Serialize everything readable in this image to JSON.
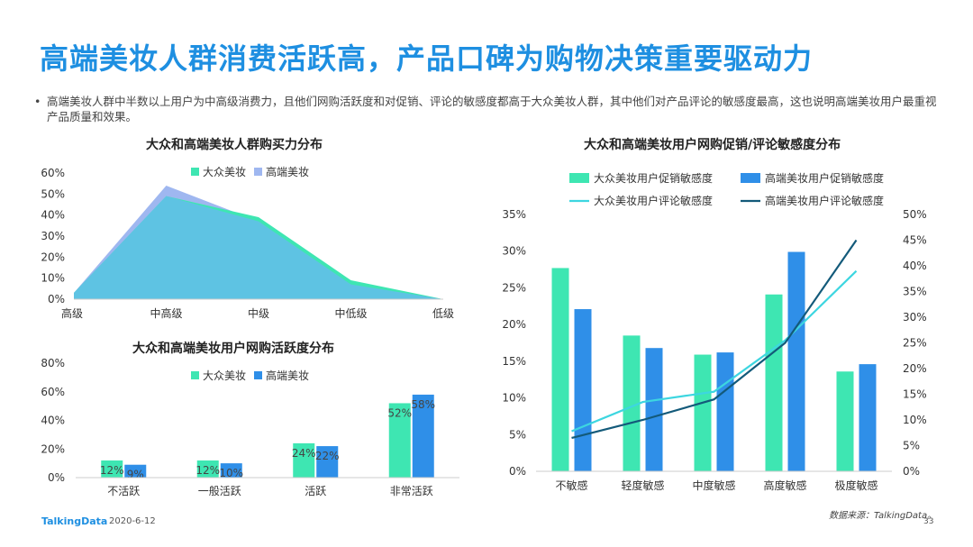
{
  "header": {
    "title": "高端美妆人群消费活跃高，产品口碑为购物决策重要驱动力",
    "bullet_symbol": "•",
    "bullet": "高端美妆人群中半数以上用户为中高级消费力，且他们网购活跃度和对促销、评论的敏感度都高于大众美妆人群，其中他们对产品评论的敏感度最高，这也说明高端美妆用户最重视产品质量和效果。"
  },
  "colors": {
    "teal": "#3ee6b2",
    "blue": "#2f8fe8",
    "light_teal": "#3dd6e0",
    "dark_navy": "#135a7a",
    "area_light": "#9fb7f0",
    "area_main": "#5ec3e3"
  },
  "chart_data": [
    {
      "type": "area",
      "title": "大众和高端美妆人群购买力分布",
      "categories": [
        "高级",
        "中高级",
        "中级",
        "中低级",
        "低级"
      ],
      "series": [
        {
          "name": "大众美妆",
          "values": [
            3,
            49,
            39,
            9,
            0
          ]
        },
        {
          "name": "高端美妆",
          "values": [
            3,
            54,
            37,
            7,
            0
          ]
        }
      ],
      "y_ticks": [
        "0%",
        "10%",
        "20%",
        "30%",
        "40%",
        "50%",
        "60%"
      ],
      "ylim": [
        0,
        60
      ],
      "legend": "top-center"
    },
    {
      "type": "bar",
      "title": "大众和高端美妆用户网购活跃度分布",
      "categories": [
        "不活跃",
        "一般活跃",
        "活跃",
        "非常活跃"
      ],
      "series": [
        {
          "name": "大众美妆",
          "values": [
            12,
            12,
            24,
            52
          ],
          "labels": [
            "12%",
            "12%",
            "24%",
            "52%"
          ]
        },
        {
          "name": "高端美妆",
          "values": [
            9,
            10,
            22,
            58
          ],
          "labels": [
            "9%",
            "10%",
            "22%",
            "58%"
          ]
        }
      ],
      "y_ticks": [
        "0%",
        "20%",
        "40%",
        "60%",
        "80%"
      ],
      "ylim": [
        0,
        80
      ],
      "legend": "top-center"
    },
    {
      "type": "bar",
      "title": "大众和高端美妆用户网购促销/评论敏感度分布",
      "categories": [
        "不敏感",
        "轻度敏感",
        "中度敏感",
        "高度敏感",
        "极度敏感"
      ],
      "series": [
        {
          "name": "大众美妆用户促销敏感度",
          "kind": "bar",
          "axis": "left",
          "values": [
            27.7,
            18.5,
            15.9,
            24.1,
            13.6
          ]
        },
        {
          "name": "高端美妆用户促销敏感度",
          "kind": "bar",
          "axis": "left",
          "values": [
            22.1,
            16.8,
            16.2,
            29.9,
            14.6
          ]
        },
        {
          "name": "大众美妆用户评论敏感度",
          "kind": "line",
          "axis": "right",
          "values": [
            7.8,
            13.5,
            15.5,
            25.5,
            39
          ]
        },
        {
          "name": "高端美妆用户评论敏感度",
          "kind": "line",
          "axis": "right",
          "values": [
            6.5,
            10,
            14,
            25,
            45
          ]
        }
      ],
      "y_left_ticks": [
        "0%",
        "5%",
        "10%",
        "15%",
        "20%",
        "25%",
        "30%",
        "35%"
      ],
      "ylim_left": [
        0,
        35
      ],
      "y_right_ticks": [
        "0%",
        "5%",
        "10%",
        "15%",
        "20%",
        "25%",
        "30%",
        "35%",
        "40%",
        "45%",
        "50%"
      ],
      "ylim_right": [
        0,
        50
      ],
      "legend": "top"
    }
  ],
  "footer": {
    "logo": "TalkingData",
    "date": "2020-6-12",
    "source": "数据来源：TalkingData。",
    "page": "33"
  }
}
